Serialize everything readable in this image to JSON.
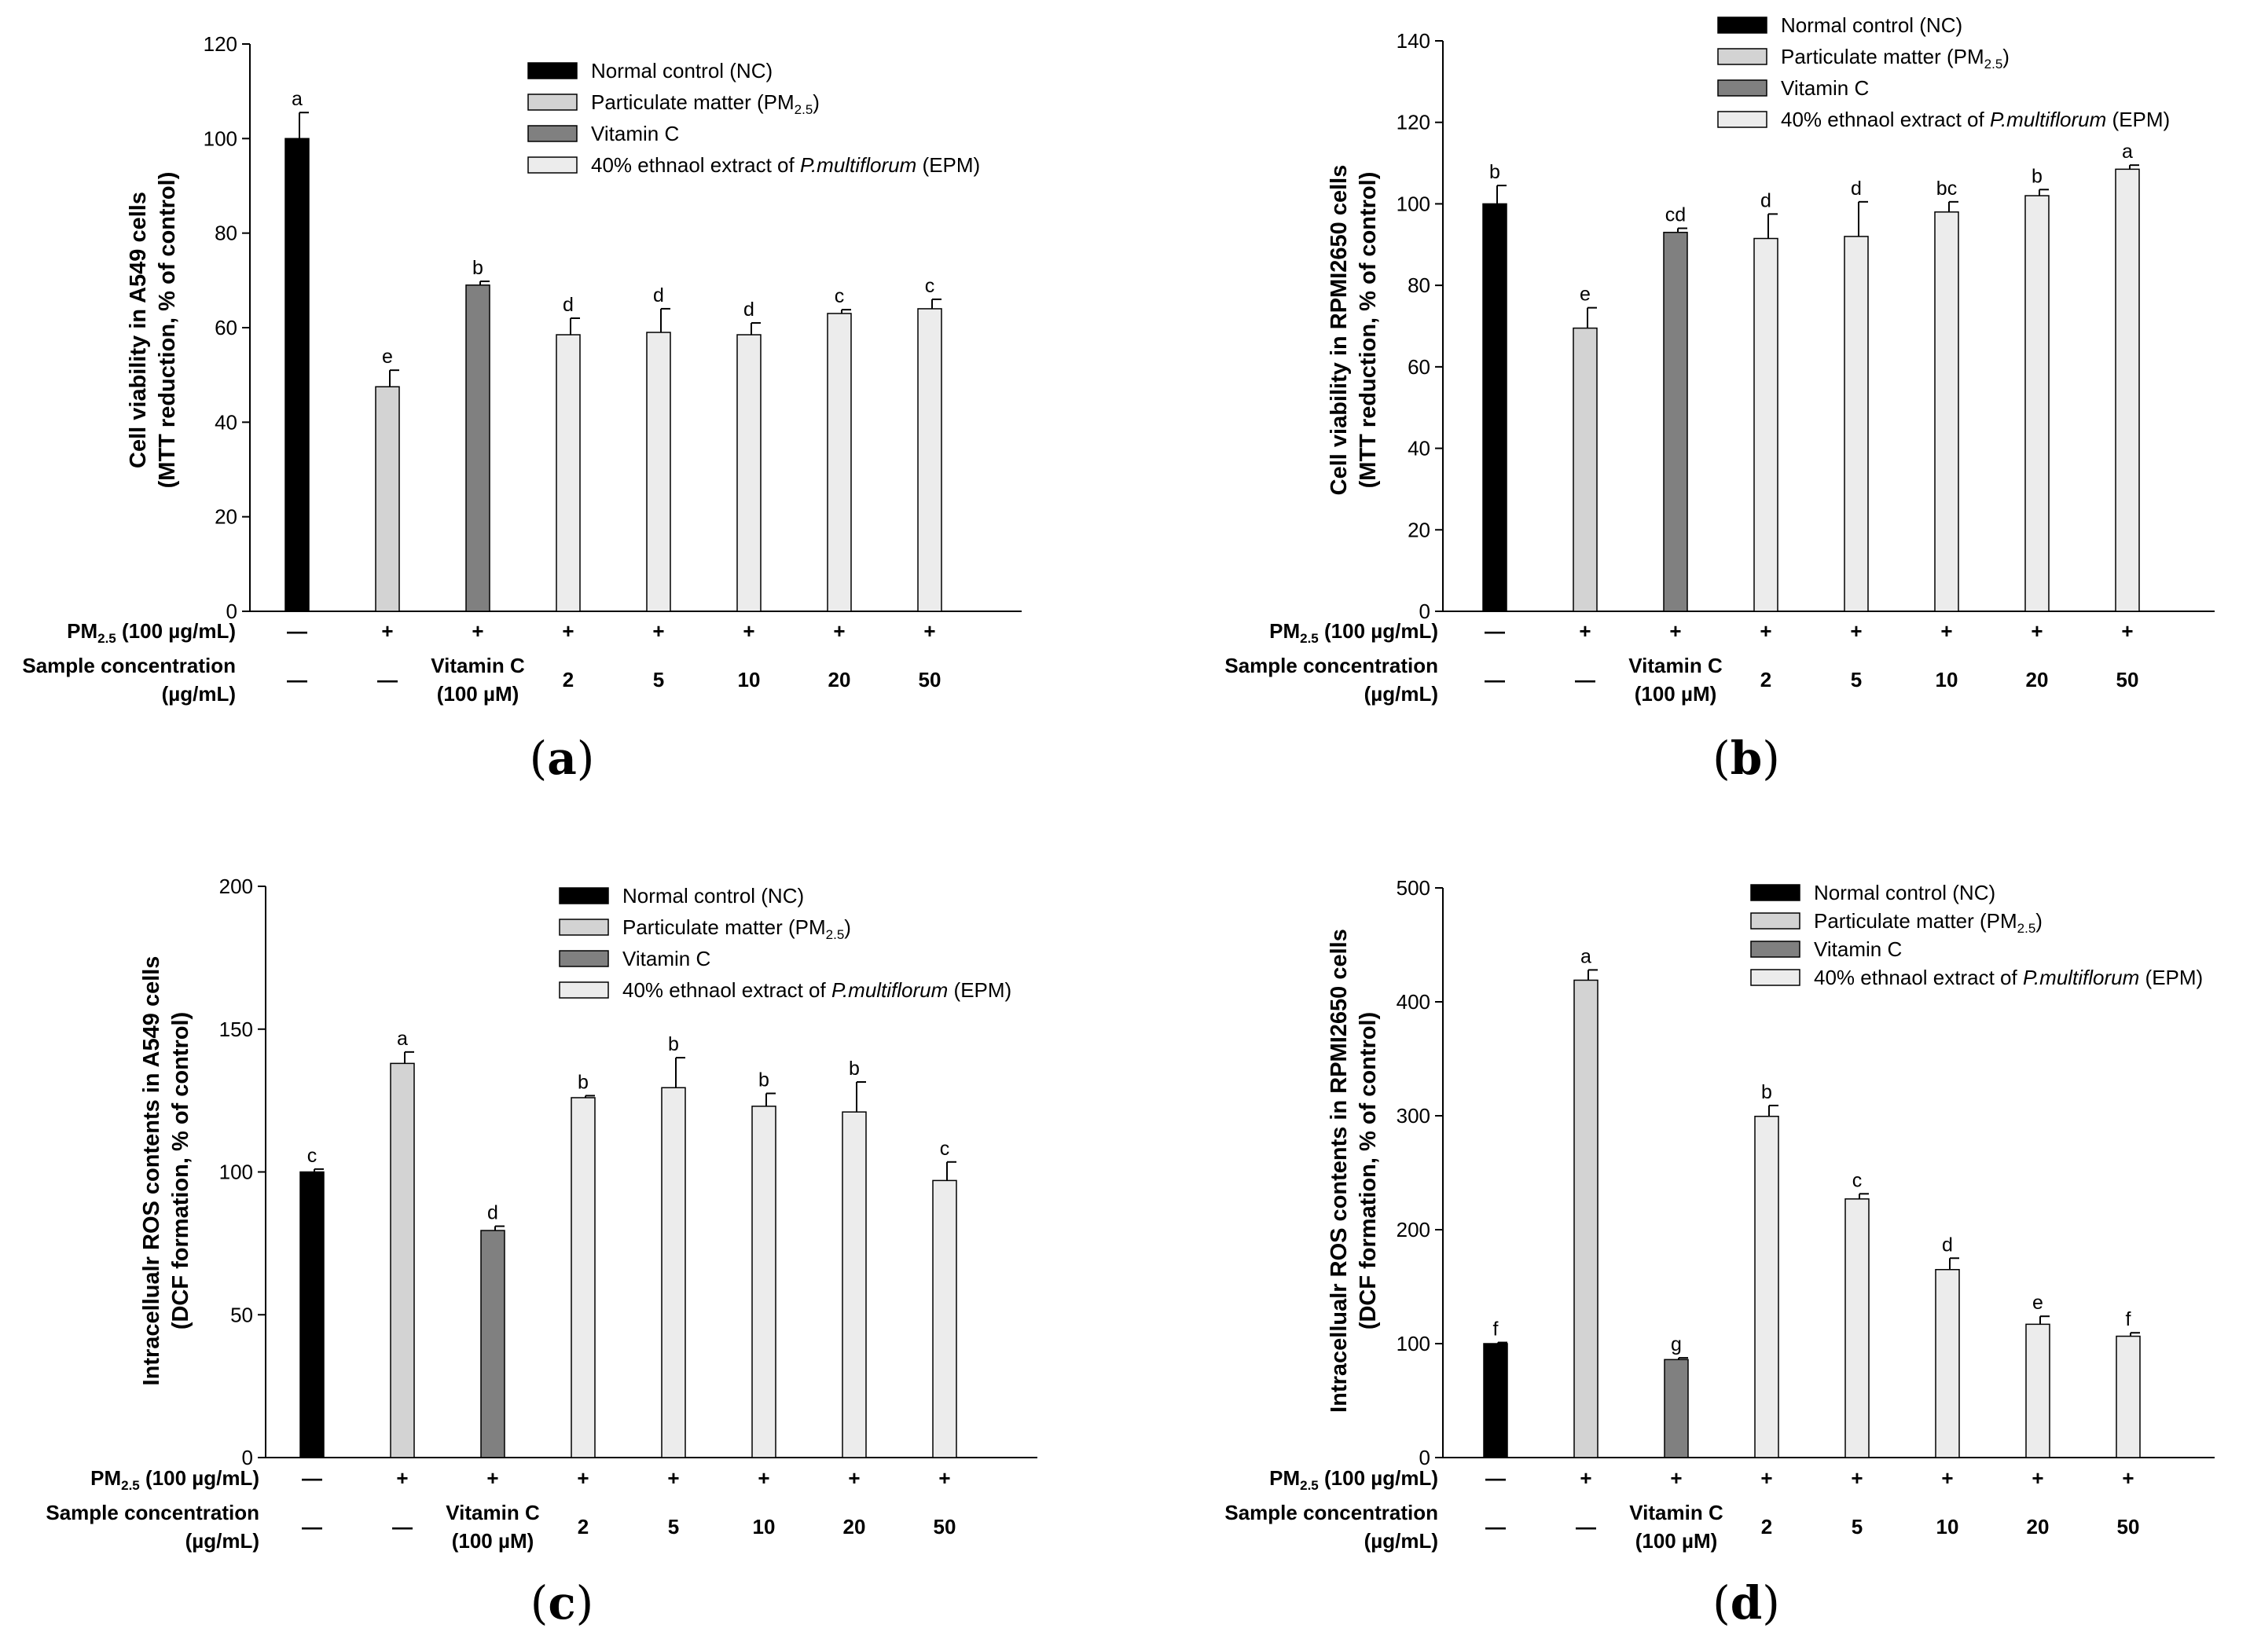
{
  "figure": {
    "row_labels": {
      "pm": [
        "PM",
        "2.5",
        " (100 µg/mL)"
      ],
      "sample": "Sample concentration",
      "sample_unit": "(µg/mL)"
    },
    "condition_labels": {
      "pm": [
        "—",
        "+",
        "+",
        "+",
        "+",
        "+",
        "+",
        "+"
      ],
      "sample": [
        [
          "—"
        ],
        [
          "—"
        ],
        [
          "Vitamin C",
          "(100 µM)"
        ],
        [
          "2"
        ],
        [
          "5"
        ],
        [
          "10"
        ],
        [
          "20"
        ],
        [
          "50"
        ]
      ]
    },
    "legend": [
      {
        "key": "nc",
        "text": "Normal control (NC)"
      },
      {
        "key": "pm",
        "text": "Particulate matter (PM",
        "sub": "2.5",
        "after": ")"
      },
      {
        "key": "vc",
        "text": "Vitamin C"
      },
      {
        "key": "epm",
        "text": "40% ethnaol extract of ",
        "italic": "P.multiflorum",
        "after": " (EPM)"
      }
    ]
  },
  "colors": {
    "nc": "#000000",
    "pm": "#d3d3d3",
    "vc": "#808080",
    "epm": "#ececec",
    "axis": "#000000"
  },
  "chart_data": [
    {
      "panel": "a",
      "panel_label": "a",
      "type": "bar",
      "ylabel_lines": [
        "Cell viability in A549 cells",
        "(MTT reduction, % of control)"
      ],
      "ylim": [
        0,
        120
      ],
      "yticks": [
        0,
        20,
        40,
        60,
        80,
        100,
        120
      ],
      "legend_position": "top-right",
      "categories": [
        "NC",
        "PM2.5",
        "Vitamin C",
        "2",
        "5",
        "10",
        "20",
        "50"
      ],
      "values": [
        100,
        47.5,
        69,
        58.5,
        59,
        58.5,
        63,
        64
      ],
      "errors": [
        5.5,
        3.5,
        0.8,
        3.5,
        5,
        2.5,
        0.8,
        2
      ],
      "letters": [
        "a",
        "e",
        "b",
        "d",
        "d",
        "d",
        "c",
        "c"
      ],
      "groups": [
        "nc",
        "pm",
        "vc",
        "epm",
        "epm",
        "epm",
        "epm",
        "epm"
      ]
    },
    {
      "panel": "b",
      "panel_label": "b",
      "type": "bar",
      "ylabel_lines": [
        "Cell viability in RPMI2650 cells",
        "(MTT reduction, % of control)"
      ],
      "ylim": [
        0,
        140
      ],
      "yticks": [
        0,
        20,
        40,
        60,
        80,
        100,
        120,
        140
      ],
      "legend_position": "top-right",
      "categories": [
        "NC",
        "PM2.5",
        "Vitamin C",
        "2",
        "5",
        "10",
        "20",
        "50"
      ],
      "values": [
        100,
        69.5,
        93,
        91.5,
        92,
        98,
        102,
        108.5
      ],
      "errors": [
        4.5,
        5,
        1,
        6,
        8.5,
        2.5,
        1.5,
        1
      ],
      "letters": [
        "b",
        "e",
        "cd",
        "d",
        "d",
        "bc",
        "b",
        "a"
      ],
      "groups": [
        "nc",
        "pm",
        "vc",
        "epm",
        "epm",
        "epm",
        "epm",
        "epm"
      ]
    },
    {
      "panel": "c",
      "panel_label": "c",
      "type": "bar",
      "ylabel_lines": [
        "Intracellualr ROS contents in A549 cells",
        "(DCF formation, % of control)"
      ],
      "ylim": [
        0,
        200
      ],
      "yticks": [
        0,
        50,
        100,
        150,
        200
      ],
      "legend_position": "top-right",
      "categories": [
        "NC",
        "PM2.5",
        "Vitamin C",
        "2",
        "5",
        "10",
        "20",
        "50"
      ],
      "values": [
        100,
        138,
        79.5,
        126,
        129.5,
        123,
        121,
        97
      ],
      "errors": [
        1,
        4,
        1.5,
        0.7,
        10.5,
        4.5,
        10.5,
        6.5
      ],
      "letters": [
        "c",
        "a",
        "d",
        "b",
        "b",
        "b",
        "b",
        "c"
      ],
      "groups": [
        "nc",
        "pm",
        "vc",
        "epm",
        "epm",
        "epm",
        "epm",
        "epm"
      ]
    },
    {
      "panel": "d",
      "panel_label": "d",
      "type": "bar",
      "ylabel_lines": [
        "Intracellualr ROS contents in RPMI2650 cells",
        "(DCF formation, % of control)"
      ],
      "ylim": [
        0,
        500
      ],
      "yticks": [
        0,
        100,
        200,
        300,
        400,
        500
      ],
      "legend_position": "top-right",
      "categories": [
        "NC",
        "PM2.5",
        "Vitamin C",
        "2",
        "5",
        "10",
        "20",
        "50"
      ],
      "values": [
        100,
        419,
        86,
        299.5,
        227,
        165,
        117,
        106.5
      ],
      "errors": [
        1,
        9,
        1.5,
        9.5,
        4.5,
        10,
        7,
        3
      ],
      "letters": [
        "f",
        "a",
        "g",
        "b",
        "c",
        "d",
        "e",
        "f"
      ],
      "groups": [
        "nc",
        "pm",
        "vc",
        "epm",
        "epm",
        "epm",
        "epm",
        "epm"
      ]
    }
  ]
}
